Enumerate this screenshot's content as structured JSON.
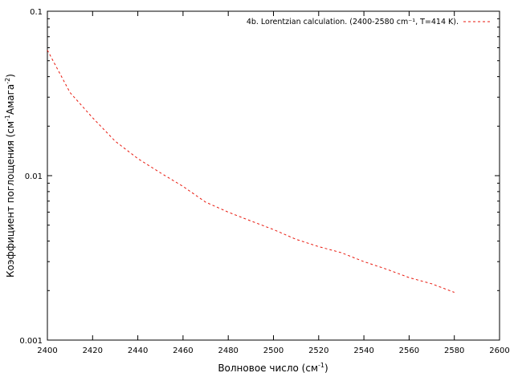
{
  "chart_data": {
    "type": "line",
    "xlabel": "Волновое число (см",
    "xlabel_sup": "-1",
    "xlabel_end": ")",
    "ylabel": "Коэффициент поглощения (см",
    "ylabel_sup1": "-1",
    "ylabel_mid": "Амага",
    "ylabel_sup2": "-2",
    "ylabel_end": ")",
    "xlim": [
      2400,
      2600
    ],
    "ylim": [
      0.001,
      0.1
    ],
    "y_scale": "log",
    "x_ticks": [
      "2400",
      "2420",
      "2440",
      "2460",
      "2480",
      "2500",
      "2520",
      "2540",
      "2560",
      "2580",
      "2600"
    ],
    "y_ticks": [
      "0.001",
      "0.01",
      "0.1"
    ],
    "legend_position": "top-right",
    "series": [
      {
        "name": "4b. Lorentzian calculation. (2400-2580 cm⁻¹, T=414 K).",
        "color": "#e8190e",
        "style": "dashed",
        "x": [
          2400,
          2410,
          2420,
          2430,
          2440,
          2450,
          2460,
          2470,
          2480,
          2490,
          2500,
          2510,
          2520,
          2530,
          2540,
          2550,
          2560,
          2570,
          2580
        ],
        "y": [
          0.058,
          0.032,
          0.0225,
          0.0162,
          0.0127,
          0.0104,
          0.0086,
          0.0069,
          0.006,
          0.0053,
          0.0047,
          0.0041,
          0.0037,
          0.0034,
          0.003,
          0.0027,
          0.0024,
          0.0022,
          0.00195
        ]
      }
    ]
  }
}
